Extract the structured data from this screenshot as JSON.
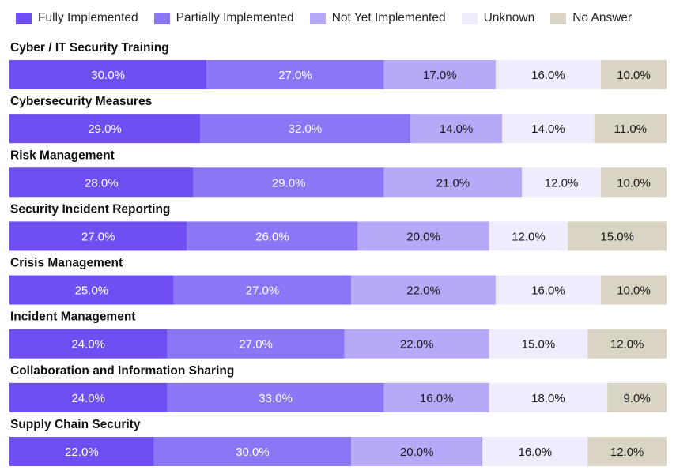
{
  "chart_data": {
    "type": "bar",
    "orientation": "horizontal",
    "stacked": true,
    "normalized": true,
    "legend_position": "top",
    "grid": false,
    "xlim": [
      0,
      100
    ],
    "categories": [
      "Cyber / IT Security Training",
      "Cybersecurity Measures",
      "Risk Management",
      "Security Incident Reporting",
      "Crisis Management",
      "Incident Management",
      "Collaboration and Information Sharing",
      "Supply Chain Security"
    ],
    "series": [
      {
        "name": "Fully Implemented",
        "color": "#6f4ef2",
        "text_color": "#ffffff",
        "values": [
          30.0,
          29.0,
          28.0,
          27.0,
          25.0,
          24.0,
          24.0,
          22.0
        ],
        "labels": [
          "30.0%",
          "29.0%",
          "28.0%",
          "27.0%",
          "25.0%",
          "24.0%",
          "24.0%",
          "22.0%"
        ]
      },
      {
        "name": "Partially Implemented",
        "color": "#8b76f5",
        "text_color": "#ffffff",
        "values": [
          27.0,
          32.0,
          29.0,
          26.0,
          27.0,
          27.0,
          33.0,
          30.0
        ],
        "labels": [
          "27.0%",
          "32.0%",
          "29.0%",
          "26.0%",
          "27.0%",
          "27.0%",
          "33.0%",
          "30.0%"
        ]
      },
      {
        "name": "Not Yet Implemented",
        "color": "#b7a8f8",
        "text_color": "#1a1a1a",
        "values": [
          17.0,
          14.0,
          21.0,
          20.0,
          22.0,
          22.0,
          16.0,
          20.0
        ],
        "labels": [
          "17.0%",
          "14.0%",
          "21.0%",
          "20.0%",
          "22.0%",
          "22.0%",
          "16.0%",
          "20.0%"
        ]
      },
      {
        "name": "Unknown",
        "color": "#efecfd",
        "text_color": "#1a1a1a",
        "values": [
          16.0,
          14.0,
          12.0,
          12.0,
          16.0,
          15.0,
          18.0,
          16.0
        ],
        "labels": [
          "16.0%",
          "14.0%",
          "12.0%",
          "12.0%",
          "16.0%",
          "15.0%",
          "18.0%",
          "16.0%"
        ]
      },
      {
        "name": "No Answer",
        "color": "#d9d4c3",
        "text_color": "#1a1a1a",
        "values": [
          10.0,
          11.0,
          10.0,
          15.0,
          10.0,
          12.0,
          9.0,
          12.0
        ],
        "labels": [
          "10.0%",
          "11.0%",
          "10.0%",
          "15.0%",
          "10.0%",
          "12.0%",
          "9.0%",
          "12.0%"
        ]
      }
    ]
  }
}
